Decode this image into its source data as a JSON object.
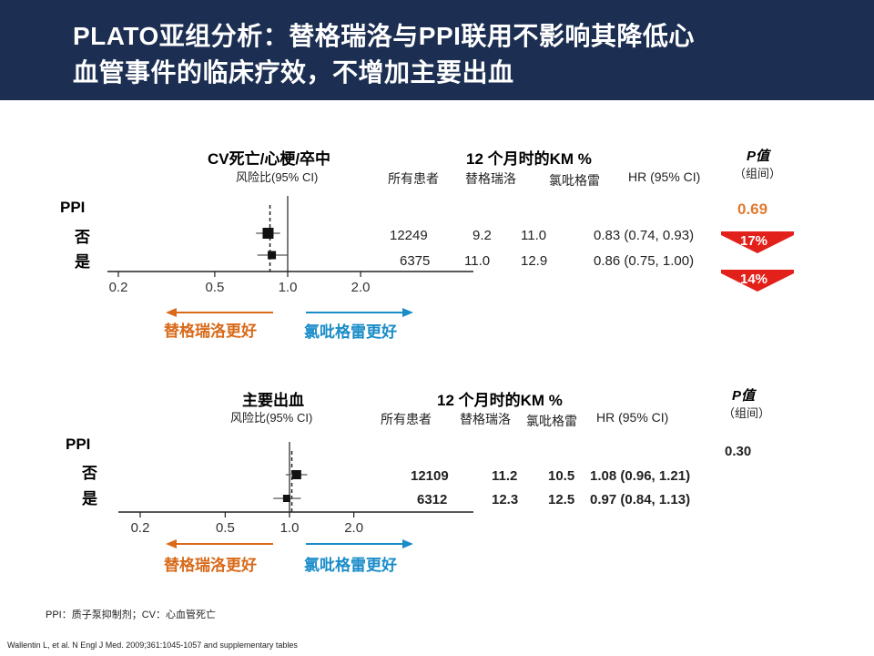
{
  "header": {
    "title_line1": "PLATO亚组分析：替格瑞洛与PPI联用不影响其降低心",
    "title_line2": "血管事件的临床疗效，不增加主要出血"
  },
  "colors": {
    "header_bg": "#1c2f52",
    "ticagrelor": "#d86a1a",
    "clopidogrel": "#1a8cc8",
    "pvalue_highlight": "#e07a30",
    "reduction_arrow": "#e3211b"
  },
  "chart_data": [
    {
      "type": "forest",
      "title": "CV死亡/心梗/卒中",
      "subtitle": "风险比(95% CI)",
      "group_label": "PPI",
      "xscale": "log",
      "xticks": [
        0.2,
        0.5,
        1.0,
        2.0
      ],
      "reference_line": 1.0,
      "km_header": "12 个月时的KM %",
      "columns": [
        "所有患者",
        "替格瑞洛",
        "氯吡格雷",
        "HR (95% CI)"
      ],
      "p_header": "P值",
      "p_sub": "（组间）",
      "p_value": "0.69",
      "favors_left": "替格瑞洛更好",
      "favors_right": "氯吡格雷更好",
      "rows": [
        {
          "label": "否",
          "n": "12249",
          "ticagrelor": "9.2",
          "clopidogrel": "11.0",
          "hr_text": "0.83 (0.74, 0.93)",
          "hr": 0.83,
          "lo": 0.74,
          "hi": 0.93,
          "reduction": "17%"
        },
        {
          "label": "是",
          "n": "6375",
          "ticagrelor": "11.0",
          "clopidogrel": "12.9",
          "hr_text": "0.86 (0.75, 1.00)",
          "hr": 0.86,
          "lo": 0.75,
          "hi": 1.0,
          "reduction": "14%"
        }
      ]
    },
    {
      "type": "forest",
      "title": "主要出血",
      "subtitle": "风险比(95% CI)",
      "group_label": "PPI",
      "xscale": "log",
      "xticks": [
        0.2,
        0.5,
        1.0,
        2.0
      ],
      "reference_line": 1.0,
      "km_header": "12 个月时的KM %",
      "columns": [
        "所有患者",
        "替格瑞洛",
        "氯吡格雷",
        "HR (95% CI)"
      ],
      "p_header": "P值",
      "p_sub": "（组间）",
      "p_value": "0.30",
      "favors_left": "替格瑞洛更好",
      "favors_right": "氯吡格雷更好",
      "rows": [
        {
          "label": "否",
          "n": "12109",
          "ticagrelor": "11.2",
          "clopidogrel": "10.5",
          "hr_text": "1.08 (0.96, 1.21)",
          "hr": 1.08,
          "lo": 0.96,
          "hi": 1.21
        },
        {
          "label": "是",
          "n": "6312",
          "ticagrelor": "12.3",
          "clopidogrel": "12.5",
          "hr_text": "0.97 (0.84, 1.13)",
          "hr": 0.97,
          "lo": 0.84,
          "hi": 1.13
        }
      ]
    }
  ],
  "footnote": "PPI：质子泵抑制剂；CV：心血管死亡",
  "reference": "Wallentin L, et al. N Engl J Med. 2009;361:1045-1057 and supplementary tables"
}
